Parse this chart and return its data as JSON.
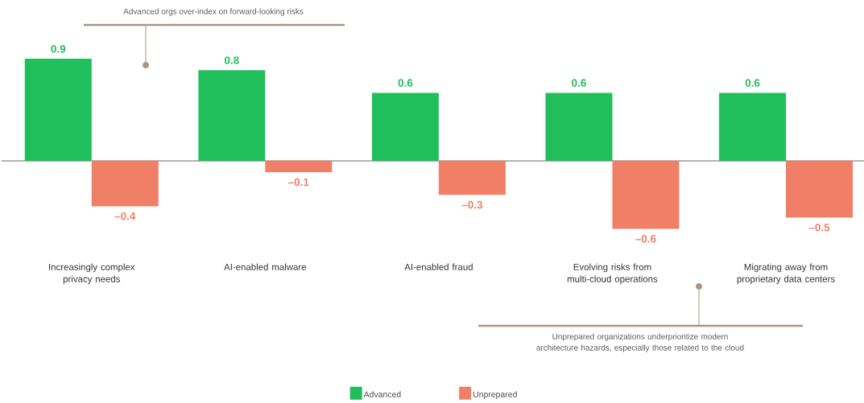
{
  "chart_data": {
    "type": "bar",
    "categories": [
      "Increasingly complex privacy needs",
      "AI-enabled malware",
      "AI-enabled fraud",
      "Evolving risks from multi-cloud operations",
      "Migrating away from proprietary data centers"
    ],
    "series": [
      {
        "name": "Advanced",
        "color": "#21bf5b",
        "values": [
          0.9,
          0.8,
          0.6,
          0.6,
          0.6
        ],
        "value_labels": [
          "0.9",
          "0.8",
          "0.6",
          "0.6",
          "0.6"
        ]
      },
      {
        "name": "Unprepared",
        "color": "#f07f67",
        "values": [
          -0.4,
          -0.1,
          -0.3,
          -0.6,
          -0.5
        ],
        "value_labels": [
          "–0.4",
          "–0.1",
          "–0.3",
          "–0.6",
          "–0.5"
        ]
      }
    ],
    "tick_labels": "x",
    "grid": false,
    "legend": "bottom",
    "ref_lines": [
      {
        "axis": "y",
        "value": 0,
        "color": "#666666"
      }
    ],
    "annotations": [
      "Advanced orgs over-index on forward-looking risks",
      "Unprepared organizations underprioritize modern architecture hazards, especially those related to the cloud"
    ]
  }
}
